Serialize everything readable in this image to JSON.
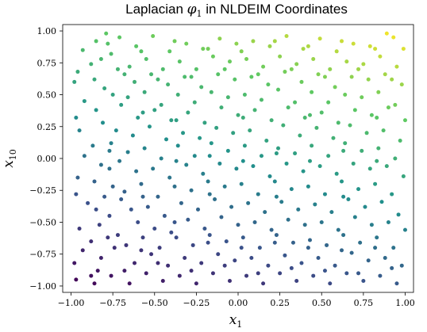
{
  "chart_data": {
    "type": "scatter",
    "title": {
      "prefix": "Laplacian ",
      "symbol": "φ",
      "symbol_subscript": "1",
      "suffix": " in NLDEIM Coordinates"
    },
    "xlabel": {
      "symbol": "x",
      "subscript": "1"
    },
    "ylabel": {
      "symbol": "x",
      "subscript": "10"
    },
    "xlim": [
      -1.05,
      1.05
    ],
    "ylim": [
      -1.05,
      1.05
    ],
    "xticks": [
      -1.0,
      -0.75,
      -0.5,
      -0.25,
      0.0,
      0.25,
      0.5,
      0.75,
      1.0
    ],
    "xtick_labels": [
      "−1.00",
      "−0.75",
      "−0.50",
      "−0.25",
      "0.00",
      "0.25",
      "0.50",
      "0.75",
      "1.00"
    ],
    "yticks": [
      -1.0,
      -0.75,
      -0.5,
      -0.25,
      0.0,
      0.25,
      0.5,
      0.75,
      1.0
    ],
    "ytick_labels": [
      "−1.00",
      "−0.75",
      "−0.50",
      "−0.25",
      "0.00",
      "0.25",
      "0.50",
      "0.75",
      "1.00"
    ],
    "grid": false,
    "colormap": "viridis",
    "color_encodes": "Laplacian eigenvector φ1 (increases from bottom-left to top-right)",
    "points": [
      [
        -0.97,
        -0.95
      ],
      [
        -0.93,
        -0.72
      ],
      [
        -0.95,
        -0.55
      ],
      [
        -0.9,
        -0.35
      ],
      [
        -0.96,
        -0.15
      ],
      [
        -0.92,
        0.02
      ],
      [
        -0.95,
        0.22
      ],
      [
        -0.92,
        0.45
      ],
      [
        -0.96,
        0.68
      ],
      [
        -0.93,
        0.85
      ],
      [
        -0.86,
        -0.98
      ],
      [
        -0.84,
        -0.88
      ],
      [
        -0.82,
        -0.78
      ],
      [
        -0.88,
        -0.65
      ],
      [
        -0.83,
        -0.52
      ],
      [
        -0.85,
        -0.4
      ],
      [
        -0.8,
        -0.3
      ],
      [
        -0.86,
        -0.18
      ],
      [
        -0.82,
        -0.05
      ],
      [
        -0.87,
        0.1
      ],
      [
        -0.81,
        0.28
      ],
      [
        -0.85,
        0.38
      ],
      [
        -0.8,
        0.55
      ],
      [
        -0.86,
        0.62
      ],
      [
        -0.82,
        0.78
      ],
      [
        -0.85,
        0.92
      ],
      [
        -0.79,
        0.98
      ],
      [
        -0.76,
        -0.92
      ],
      [
        -0.74,
        -0.7
      ],
      [
        -0.72,
        -0.6
      ],
      [
        -0.77,
        -0.45
      ],
      [
        -0.7,
        -0.32
      ],
      [
        -0.75,
        -0.22
      ],
      [
        -0.71,
        -0.02
      ],
      [
        -0.76,
        0.12
      ],
      [
        -0.73,
        0.22
      ],
      [
        -0.7,
        0.42
      ],
      [
        -0.75,
        0.5
      ],
      [
        -0.72,
        0.7
      ],
      [
        -0.76,
        0.82
      ],
      [
        -0.71,
        0.95
      ],
      [
        -0.65,
        -0.98
      ],
      [
        -0.62,
        -0.82
      ],
      [
        -0.67,
        -0.68
      ],
      [
        -0.6,
        -0.5
      ],
      [
        -0.64,
        -0.4
      ],
      [
        -0.68,
        -0.26
      ],
      [
        -0.61,
        -0.1
      ],
      [
        -0.66,
        0.05
      ],
      [
        -0.63,
        0.18
      ],
      [
        -0.6,
        0.32
      ],
      [
        -0.66,
        0.48
      ],
      [
        -0.62,
        0.6
      ],
      [
        -0.65,
        0.72
      ],
      [
        -0.61,
        0.88
      ],
      [
        -0.55,
        -0.9
      ],
      [
        -0.52,
        -0.75
      ],
      [
        -0.57,
        -0.62
      ],
      [
        -0.5,
        -0.55
      ],
      [
        -0.54,
        -0.38
      ],
      [
        -0.58,
        -0.2
      ],
      [
        -0.51,
        -0.08
      ],
      [
        -0.56,
        0.08
      ],
      [
        -0.53,
        0.25
      ],
      [
        -0.5,
        0.38
      ],
      [
        -0.56,
        0.52
      ],
      [
        -0.52,
        0.66
      ],
      [
        -0.55,
        0.78
      ],
      [
        -0.51,
        0.96
      ],
      [
        -0.45,
        -0.96
      ],
      [
        -0.42,
        -0.84
      ],
      [
        -0.47,
        -0.7
      ],
      [
        -0.4,
        -0.58
      ],
      [
        -0.44,
        -0.45
      ],
      [
        -0.48,
        -0.3
      ],
      [
        -0.41,
        -0.15
      ],
      [
        -0.46,
        0.0
      ],
      [
        -0.43,
        0.15
      ],
      [
        -0.4,
        0.3
      ],
      [
        -0.46,
        0.42
      ],
      [
        -0.42,
        0.58
      ],
      [
        -0.45,
        0.7
      ],
      [
        -0.41,
        0.84
      ],
      [
        -0.35,
        -0.92
      ],
      [
        -0.32,
        -0.78
      ],
      [
        -0.37,
        -0.62
      ],
      [
        -0.3,
        -0.48
      ],
      [
        -0.34,
        -0.35
      ],
      [
        -0.38,
        -0.22
      ],
      [
        -0.31,
        -0.05
      ],
      [
        -0.36,
        0.1
      ],
      [
        -0.33,
        0.2
      ],
      [
        -0.3,
        0.36
      ],
      [
        -0.36,
        0.5
      ],
      [
        -0.32,
        0.64
      ],
      [
        -0.35,
        0.76
      ],
      [
        -0.31,
        0.9
      ],
      [
        -0.25,
        -0.98
      ],
      [
        -0.22,
        -0.82
      ],
      [
        -0.27,
        -0.68
      ],
      [
        -0.2,
        -0.55
      ],
      [
        -0.24,
        -0.4
      ],
      [
        -0.28,
        -0.25
      ],
      [
        -0.21,
        -0.12
      ],
      [
        -0.26,
        0.02
      ],
      [
        -0.23,
        0.16
      ],
      [
        -0.2,
        0.28
      ],
      [
        -0.26,
        0.44
      ],
      [
        -0.22,
        0.56
      ],
      [
        -0.25,
        0.7
      ],
      [
        -0.21,
        0.86
      ],
      [
        -0.15,
        -0.9
      ],
      [
        -0.12,
        -0.75
      ],
      [
        -0.17,
        -0.6
      ],
      [
        -0.1,
        -0.46
      ],
      [
        -0.14,
        -0.32
      ],
      [
        -0.18,
        -0.18
      ],
      [
        -0.11,
        -0.04
      ],
      [
        -0.16,
        0.12
      ],
      [
        -0.13,
        0.24
      ],
      [
        -0.1,
        0.4
      ],
      [
        -0.16,
        0.52
      ],
      [
        -0.12,
        0.66
      ],
      [
        -0.15,
        0.8
      ],
      [
        -0.11,
        0.94
      ],
      [
        -0.05,
        -0.96
      ],
      [
        -0.02,
        -0.8
      ],
      [
        -0.07,
        -0.65
      ],
      [
        0.0,
        -0.52
      ],
      [
        -0.04,
        -0.38
      ],
      [
        -0.08,
        -0.22
      ],
      [
        -0.01,
        -0.08
      ],
      [
        -0.06,
        0.06
      ],
      [
        -0.03,
        0.2
      ],
      [
        0.0,
        0.34
      ],
      [
        -0.06,
        0.48
      ],
      [
        -0.02,
        0.62
      ],
      [
        -0.05,
        0.76
      ],
      [
        -0.01,
        0.9
      ],
      [
        0.05,
        -0.92
      ],
      [
        0.08,
        -0.78
      ],
      [
        0.03,
        -0.62
      ],
      [
        0.1,
        -0.5
      ],
      [
        0.06,
        -0.35
      ],
      [
        0.02,
        -0.2
      ],
      [
        0.09,
        -0.06
      ],
      [
        0.04,
        0.1
      ],
      [
        0.07,
        0.22
      ],
      [
        0.1,
        0.38
      ],
      [
        0.04,
        0.5
      ],
      [
        0.08,
        0.64
      ],
      [
        0.05,
        0.78
      ],
      [
        0.09,
        0.92
      ],
      [
        0.15,
        -0.98
      ],
      [
        0.18,
        -0.84
      ],
      [
        0.13,
        -0.7
      ],
      [
        0.2,
        -0.56
      ],
      [
        0.16,
        -0.42
      ],
      [
        0.12,
        -0.28
      ],
      [
        0.19,
        -0.14
      ],
      [
        0.14,
        0.02
      ],
      [
        0.17,
        0.14
      ],
      [
        0.2,
        0.3
      ],
      [
        0.14,
        0.46
      ],
      [
        0.18,
        0.58
      ],
      [
        0.15,
        0.72
      ],
      [
        0.19,
        0.88
      ],
      [
        0.25,
        -0.9
      ],
      [
        0.28,
        -0.76
      ],
      [
        0.23,
        -0.6
      ],
      [
        0.3,
        -0.48
      ],
      [
        0.26,
        -0.34
      ],
      [
        0.22,
        -0.18
      ],
      [
        0.29,
        -0.04
      ],
      [
        0.24,
        0.08
      ],
      [
        0.27,
        0.26
      ],
      [
        0.3,
        0.4
      ],
      [
        0.24,
        0.54
      ],
      [
        0.28,
        0.68
      ],
      [
        0.25,
        0.8
      ],
      [
        0.29,
        0.96
      ],
      [
        0.35,
        -0.96
      ],
      [
        0.38,
        -0.82
      ],
      [
        0.33,
        -0.66
      ],
      [
        0.4,
        -0.52
      ],
      [
        0.36,
        -0.4
      ],
      [
        0.32,
        -0.24
      ],
      [
        0.39,
        -0.1
      ],
      [
        0.34,
        0.04
      ],
      [
        0.37,
        0.18
      ],
      [
        0.4,
        0.32
      ],
      [
        0.34,
        0.44
      ],
      [
        0.38,
        0.6
      ],
      [
        0.35,
        0.74
      ],
      [
        0.39,
        0.86
      ],
      [
        0.45,
        -0.92
      ],
      [
        0.48,
        -0.78
      ],
      [
        0.43,
        -0.64
      ],
      [
        0.5,
        -0.5
      ],
      [
        0.46,
        -0.36
      ],
      [
        0.42,
        -0.22
      ],
      [
        0.49,
        -0.06
      ],
      [
        0.44,
        0.1
      ],
      [
        0.47,
        0.24
      ],
      [
        0.5,
        0.36
      ],
      [
        0.44,
        0.52
      ],
      [
        0.48,
        0.66
      ],
      [
        0.45,
        0.78
      ],
      [
        0.49,
        0.94
      ],
      [
        0.55,
        -0.98
      ],
      [
        0.58,
        -0.84
      ],
      [
        0.53,
        -0.68
      ],
      [
        0.6,
        -0.56
      ],
      [
        0.56,
        -0.42
      ],
      [
        0.52,
        -0.28
      ],
      [
        0.59,
        -0.12
      ],
      [
        0.54,
        0.02
      ],
      [
        0.57,
        0.16
      ],
      [
        0.6,
        0.28
      ],
      [
        0.54,
        0.44
      ],
      [
        0.58,
        0.56
      ],
      [
        0.55,
        0.7
      ],
      [
        0.59,
        0.84
      ],
      [
        0.65,
        -0.9
      ],
      [
        0.68,
        -0.74
      ],
      [
        0.63,
        -0.6
      ],
      [
        0.7,
        -0.46
      ],
      [
        0.66,
        -0.32
      ],
      [
        0.62,
        -0.18
      ],
      [
        0.69,
        -0.04
      ],
      [
        0.64,
        0.12
      ],
      [
        0.67,
        0.26
      ],
      [
        0.7,
        0.38
      ],
      [
        0.64,
        0.5
      ],
      [
        0.68,
        0.64
      ],
      [
        0.65,
        0.76
      ],
      [
        0.69,
        0.9
      ],
      [
        0.75,
        -0.96
      ],
      [
        0.78,
        -0.8
      ],
      [
        0.73,
        -0.66
      ],
      [
        0.8,
        -0.52
      ],
      [
        0.76,
        -0.38
      ],
      [
        0.72,
        -0.24
      ],
      [
        0.79,
        -0.08
      ],
      [
        0.74,
        0.06
      ],
      [
        0.77,
        0.2
      ],
      [
        0.8,
        0.34
      ],
      [
        0.74,
        0.48
      ],
      [
        0.78,
        0.62
      ],
      [
        0.75,
        0.74
      ],
      [
        0.79,
        0.88
      ],
      [
        0.85,
        -0.92
      ],
      [
        0.88,
        -0.78
      ],
      [
        0.83,
        -0.62
      ],
      [
        0.9,
        -0.5
      ],
      [
        0.86,
        -0.34
      ],
      [
        0.82,
        -0.2
      ],
      [
        0.89,
        -0.06
      ],
      [
        0.84,
        0.08
      ],
      [
        0.87,
        0.22
      ],
      [
        0.9,
        0.4
      ],
      [
        0.84,
        0.52
      ],
      [
        0.88,
        0.66
      ],
      [
        0.85,
        0.8
      ],
      [
        0.89,
        0.98
      ],
      [
        0.95,
        -0.98
      ],
      [
        0.98,
        -0.84
      ],
      [
        0.93,
        -0.7
      ],
      [
        1.0,
        -0.56
      ],
      [
        0.96,
        -0.44
      ],
      [
        0.92,
        -0.28
      ],
      [
        0.99,
        -0.14
      ],
      [
        0.94,
        0.0
      ],
      [
        0.97,
        0.14
      ],
      [
        1.0,
        0.3
      ],
      [
        0.94,
        0.42
      ],
      [
        0.98,
        0.58
      ],
      [
        0.95,
        0.72
      ],
      [
        0.99,
        0.86
      ],
      [
        0.93,
        0.95
      ],
      [
        -0.98,
        -0.82
      ],
      [
        -0.88,
        -0.92
      ],
      [
        -0.78,
        -0.62
      ],
      [
        -0.68,
        -0.88
      ],
      [
        -0.58,
        -0.72
      ],
      [
        -0.48,
        -0.82
      ],
      [
        -0.38,
        -0.5
      ],
      [
        -0.28,
        -0.88
      ],
      [
        -0.18,
        -0.66
      ],
      [
        -0.08,
        -0.84
      ],
      [
        0.02,
        -0.7
      ],
      [
        0.12,
        -0.9
      ],
      [
        0.22,
        -0.66
      ],
      [
        0.32,
        -0.86
      ],
      [
        0.42,
        -0.7
      ],
      [
        0.52,
        -0.88
      ],
      [
        0.62,
        -0.72
      ],
      [
        0.72,
        -0.9
      ],
      [
        0.82,
        -0.7
      ],
      [
        0.92,
        -0.86
      ],
      [
        -0.98,
        0.6
      ],
      [
        -0.88,
        0.74
      ],
      [
        -0.78,
        0.9
      ],
      [
        -0.68,
        0.66
      ],
      [
        -0.58,
        0.84
      ],
      [
        -0.48,
        0.62
      ],
      [
        -0.38,
        0.92
      ],
      [
        -0.28,
        0.64
      ],
      [
        -0.18,
        0.86
      ],
      [
        -0.08,
        0.7
      ],
      [
        0.02,
        0.84
      ],
      [
        0.12,
        0.66
      ],
      [
        0.22,
        0.92
      ],
      [
        0.32,
        0.7
      ],
      [
        0.42,
        0.88
      ],
      [
        0.52,
        0.64
      ],
      [
        0.62,
        0.92
      ],
      [
        0.72,
        0.7
      ],
      [
        0.82,
        0.86
      ],
      [
        0.92,
        0.62
      ],
      [
        -0.97,
        -0.28
      ],
      [
        -0.77,
        -0.08
      ],
      [
        -0.57,
        -0.3
      ],
      [
        -0.37,
        -0.02
      ],
      [
        -0.17,
        -0.28
      ],
      [
        0.03,
        -0.02
      ],
      [
        0.23,
        -0.3
      ],
      [
        0.43,
        -0.02
      ],
      [
        0.63,
        -0.3
      ],
      [
        0.83,
        -0.02
      ],
      [
        -0.97,
        0.32
      ],
      [
        -0.77,
        0.06
      ],
      [
        -0.57,
        0.36
      ],
      [
        -0.37,
        0.3
      ],
      [
        -0.17,
        0.02
      ],
      [
        0.03,
        0.32
      ],
      [
        0.23,
        0.04
      ],
      [
        0.43,
        0.34
      ],
      [
        0.63,
        0.06
      ],
      [
        0.83,
        0.32
      ]
    ]
  }
}
